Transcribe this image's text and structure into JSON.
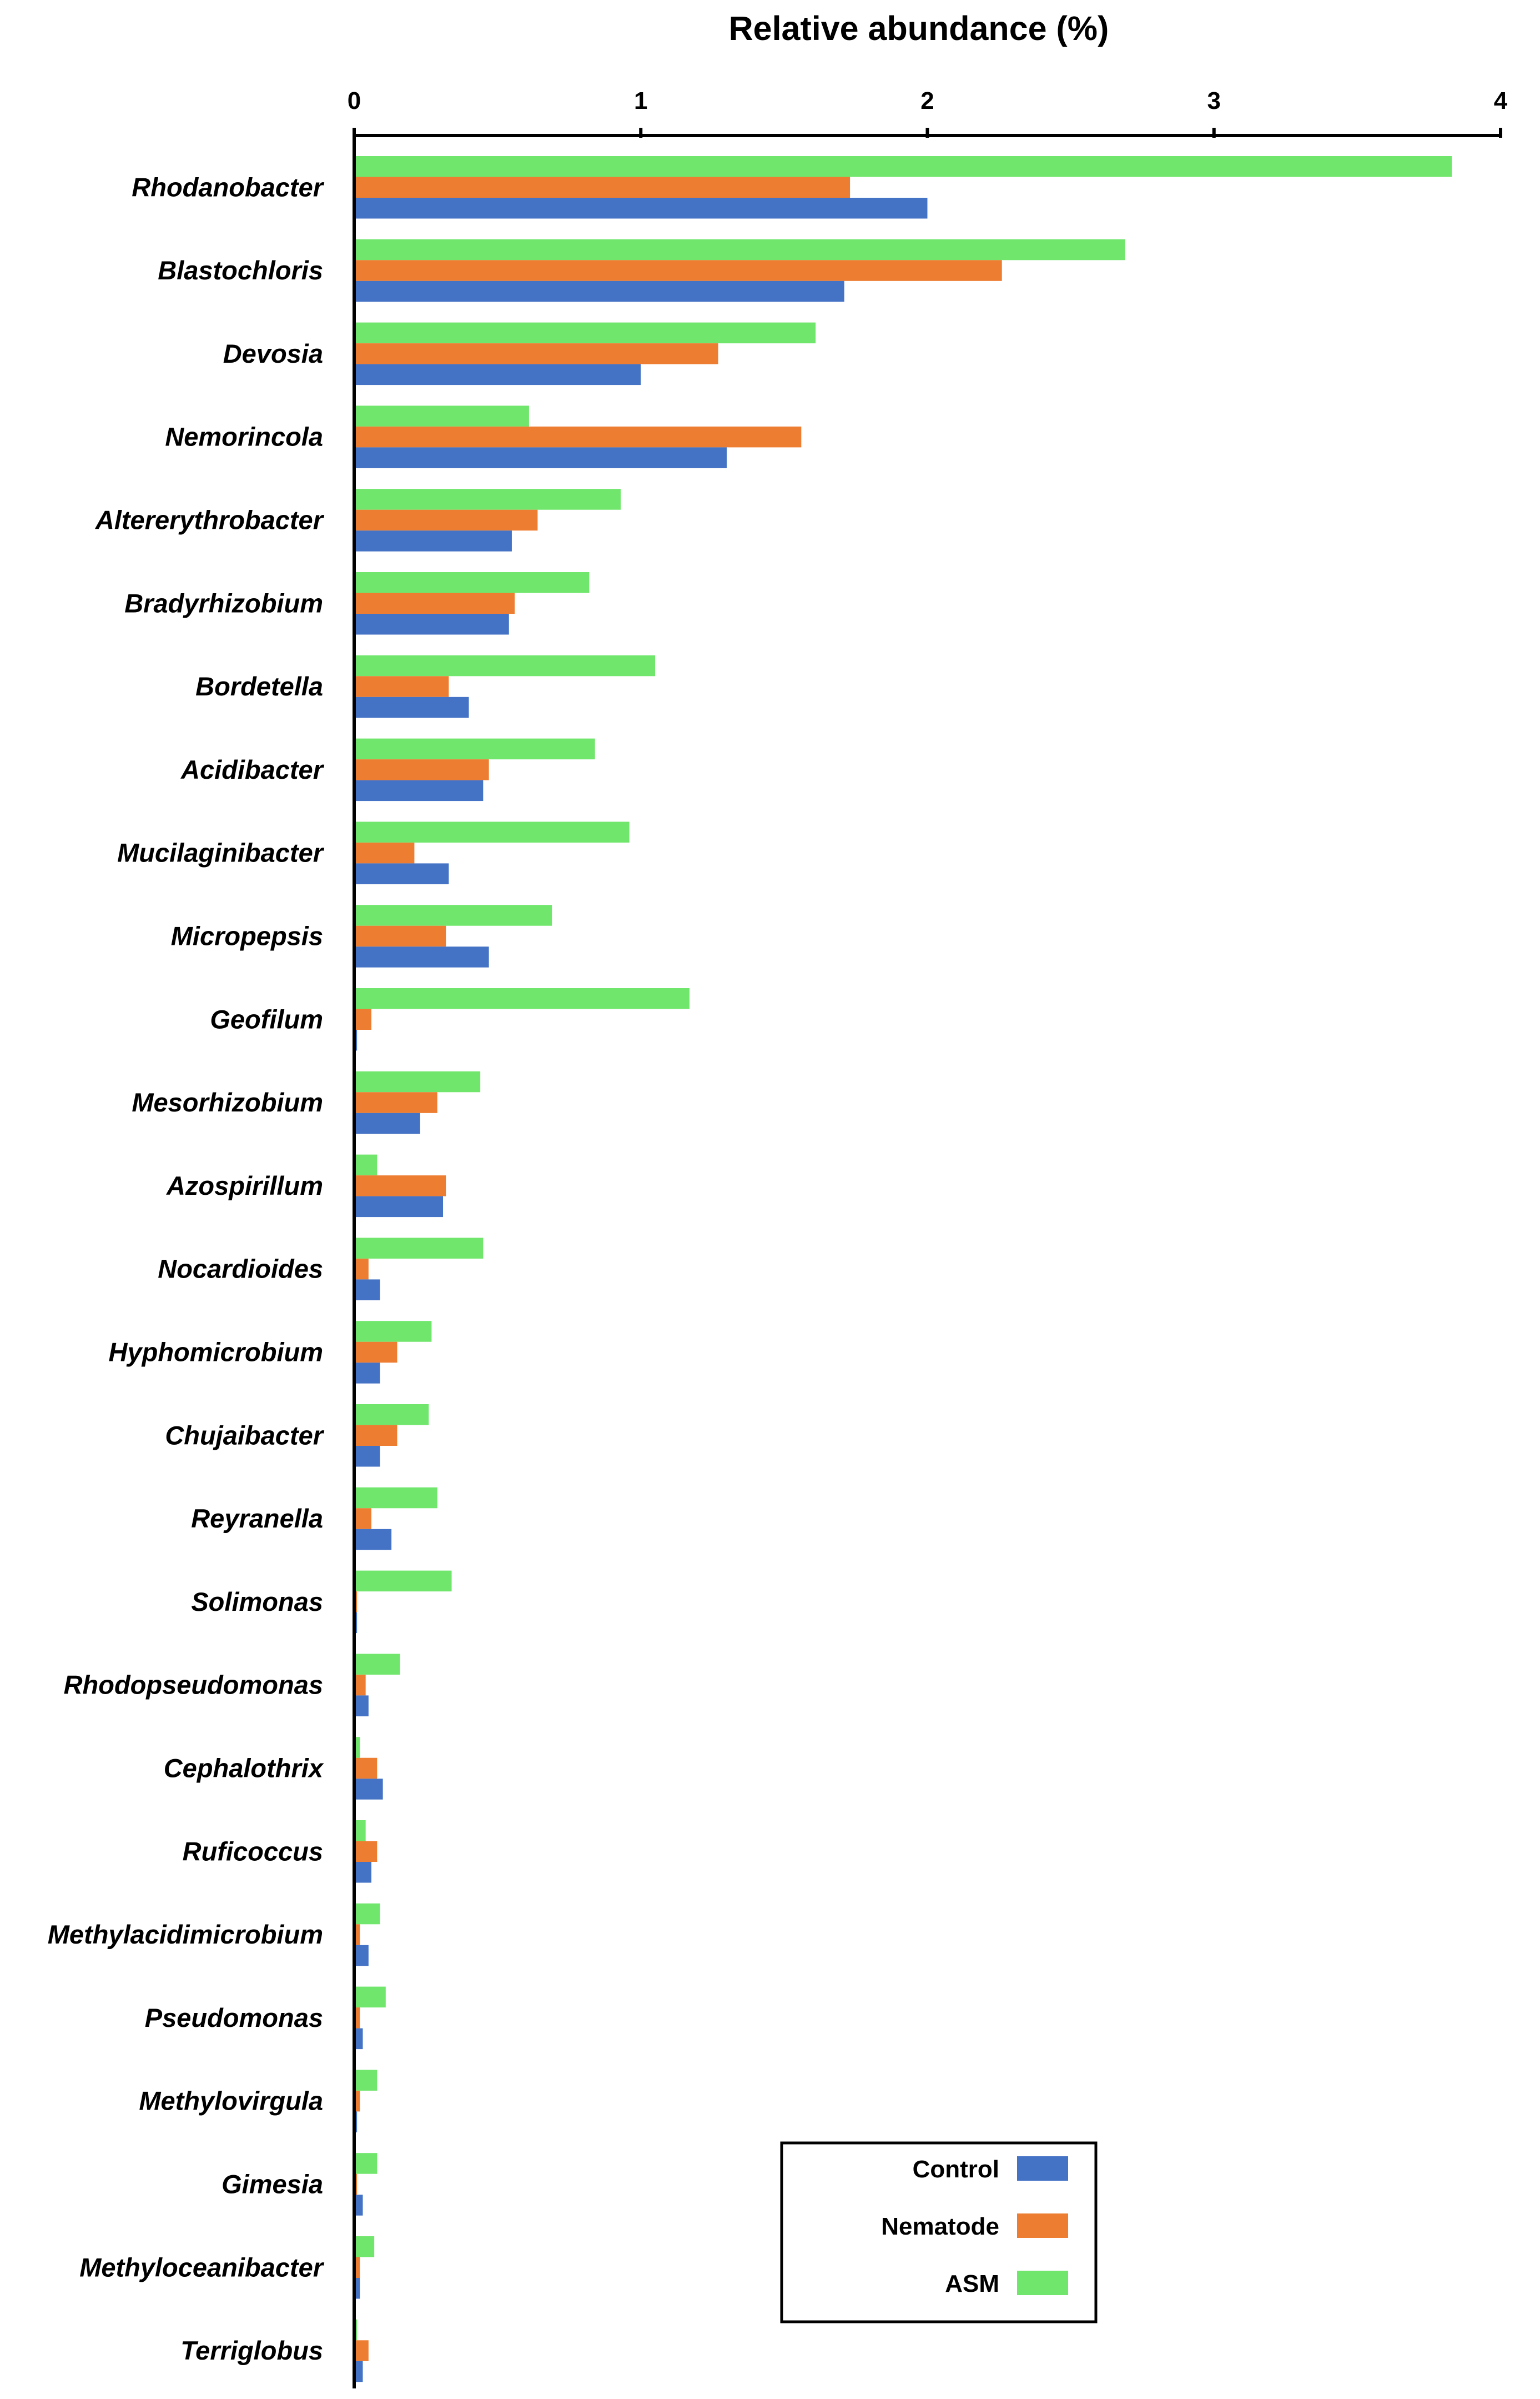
{
  "chart_data": {
    "type": "bar",
    "orientation": "horizontal",
    "title": "",
    "xlabel": "Relative abundance (%)",
    "ylabel": "",
    "xlim": [
      0,
      4
    ],
    "xticks": [
      "0",
      "1",
      "2",
      "3",
      "4"
    ],
    "grid": false,
    "legend_position": "bottom-right",
    "categories": [
      "Rhodanobacter",
      "Blastochloris",
      "Devosia",
      "Nemorincola",
      "Altererythrobacter",
      "Bradyrhizobium",
      "Bordetella",
      "Acidibacter",
      "Mucilaginibacter",
      "Micropepsis",
      "Geofilum",
      "Mesorhizobium",
      "Azospirillum",
      "Nocardioides",
      "Hyphomicrobium",
      "Chujaibacter",
      "Reyranella",
      "Solimonas",
      "Rhodopseudomonas",
      "Cephalothrix",
      "Ruficoccus",
      "Methylacidimicrobium",
      "Pseudomonas",
      "Methylovirgula",
      "Gimesia",
      "Methyloceanibacter",
      "Terriglobus"
    ],
    "series": [
      {
        "name": "Control",
        "color": "#4472C4",
        "values": [
          2.0,
          1.71,
          1.0,
          1.3,
          0.55,
          0.54,
          0.4,
          0.45,
          0.33,
          0.47,
          0.01,
          0.23,
          0.31,
          0.09,
          0.09,
          0.09,
          0.13,
          0.01,
          0.05,
          0.1,
          0.06,
          0.05,
          0.03,
          0.01,
          0.03,
          0.02,
          0.03
        ]
      },
      {
        "name": "Nematode",
        "color": "#ED7D31",
        "values": [
          1.73,
          2.26,
          1.27,
          1.56,
          0.64,
          0.56,
          0.33,
          0.47,
          0.21,
          0.32,
          0.06,
          0.29,
          0.32,
          0.05,
          0.15,
          0.15,
          0.06,
          0.01,
          0.04,
          0.08,
          0.08,
          0.02,
          0.02,
          0.02,
          0.01,
          0.02,
          0.05
        ]
      },
      {
        "name": "ASM",
        "color": "#70E66C",
        "values": [
          3.83,
          2.69,
          1.61,
          0.61,
          0.93,
          0.82,
          1.05,
          0.84,
          0.96,
          0.69,
          1.17,
          0.44,
          0.08,
          0.45,
          0.27,
          0.26,
          0.29,
          0.34,
          0.16,
          0.02,
          0.04,
          0.09,
          0.11,
          0.08,
          0.08,
          0.07,
          0.01
        ]
      }
    ]
  }
}
